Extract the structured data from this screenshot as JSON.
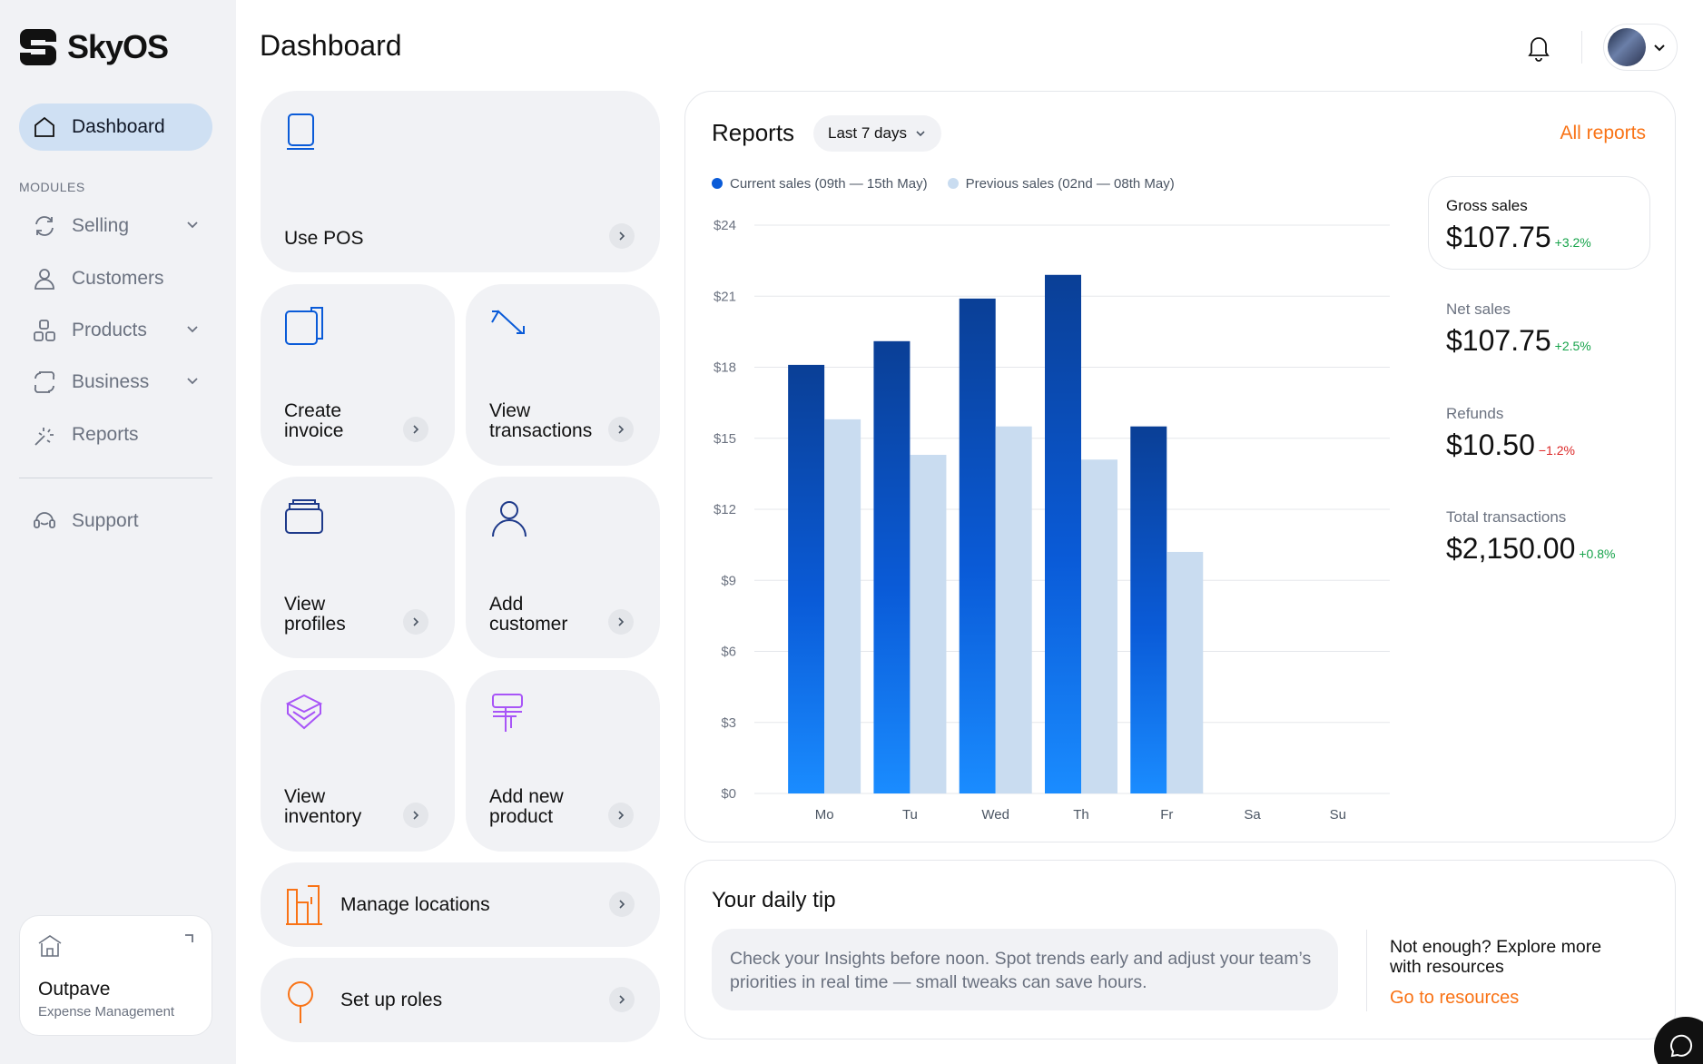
{
  "app": {
    "name": "SkyOS"
  },
  "sidebar": {
    "dashboard": "Dashboard",
    "modules_label": "MODULES",
    "items": [
      {
        "label": "Selling",
        "icon": "refresh-icon"
      },
      {
        "label": "Customers",
        "icon": "user-icon"
      },
      {
        "label": "Products",
        "icon": "shapes-icon"
      },
      {
        "label": "Business",
        "icon": "s-shape-icon"
      },
      {
        "label": "Reports",
        "icon": "sparkle-icon"
      }
    ],
    "support": "Support",
    "org": {
      "name": "Outpave",
      "subtitle": "Expense Management"
    }
  },
  "header": {
    "title": "Dashboard"
  },
  "actions": {
    "use_pos": "Use POS",
    "create_invoice_1": "Create",
    "create_invoice_2": "invoice",
    "view_transactions_1": "View",
    "view_transactions_2": "transactions",
    "view_profiles_1": "View",
    "view_profiles_2": "profiles",
    "add_customer_1": "Add",
    "add_customer_2": "customer",
    "view_inventory_1": "View",
    "view_inventory_2": "inventory",
    "add_product_1": "Add new",
    "add_product_2": "product",
    "manage_locations": "Manage locations",
    "set_up_roles": "Set up roles"
  },
  "reports": {
    "title": "Reports",
    "range": "Last 7 days",
    "all_reports": "All reports",
    "legend_current": "Current sales (09th — 15th May)",
    "legend_previous": "Previous sales (02nd — 08th May)",
    "stats": {
      "gross_label": "Gross sales",
      "gross_value": "$107.75",
      "gross_change": "+3.2%",
      "net_label": "Net sales",
      "net_value": "$107.75",
      "net_change": "+2.5%",
      "refunds_label": "Refunds",
      "refunds_value": "$10.50",
      "refunds_change": "−1.2%",
      "transactions_label": "Total transactions",
      "transactions_value": "$2,150.00",
      "transactions_change": "+0.8%"
    }
  },
  "colors": {
    "accent": "#f97316",
    "positive": "#16a34a",
    "negative": "#dc2626",
    "current_bar": "#0a5bd8",
    "previous_bar": "#c9dcf0"
  },
  "chart_data": {
    "type": "bar",
    "categories": [
      "Mo",
      "Tu",
      "Wed",
      "Th",
      "Fr",
      "Sa",
      "Su"
    ],
    "series": [
      {
        "name": "Current sales (09th — 15th May)",
        "values": [
          18.1,
          19.1,
          20.9,
          21.9,
          15.5,
          0,
          0
        ]
      },
      {
        "name": "Previous sales (02nd — 08th May)",
        "values": [
          15.8,
          14.3,
          15.5,
          14.1,
          10.2,
          0,
          0
        ]
      }
    ],
    "yticks": [
      "$0",
      "$3",
      "$6",
      "$9",
      "$12",
      "$15",
      "$18",
      "$21",
      "$24"
    ],
    "ylim": [
      0,
      24
    ],
    "grid": true,
    "legend": "top-left"
  },
  "tip": {
    "title": "Your daily tip",
    "text": "Check your Insights before noon. Spot trends early and adjust your team’s priorities in real time — small tweaks can save hours.",
    "more": "Not enough? Explore more with resources",
    "link": "Go to resources"
  }
}
